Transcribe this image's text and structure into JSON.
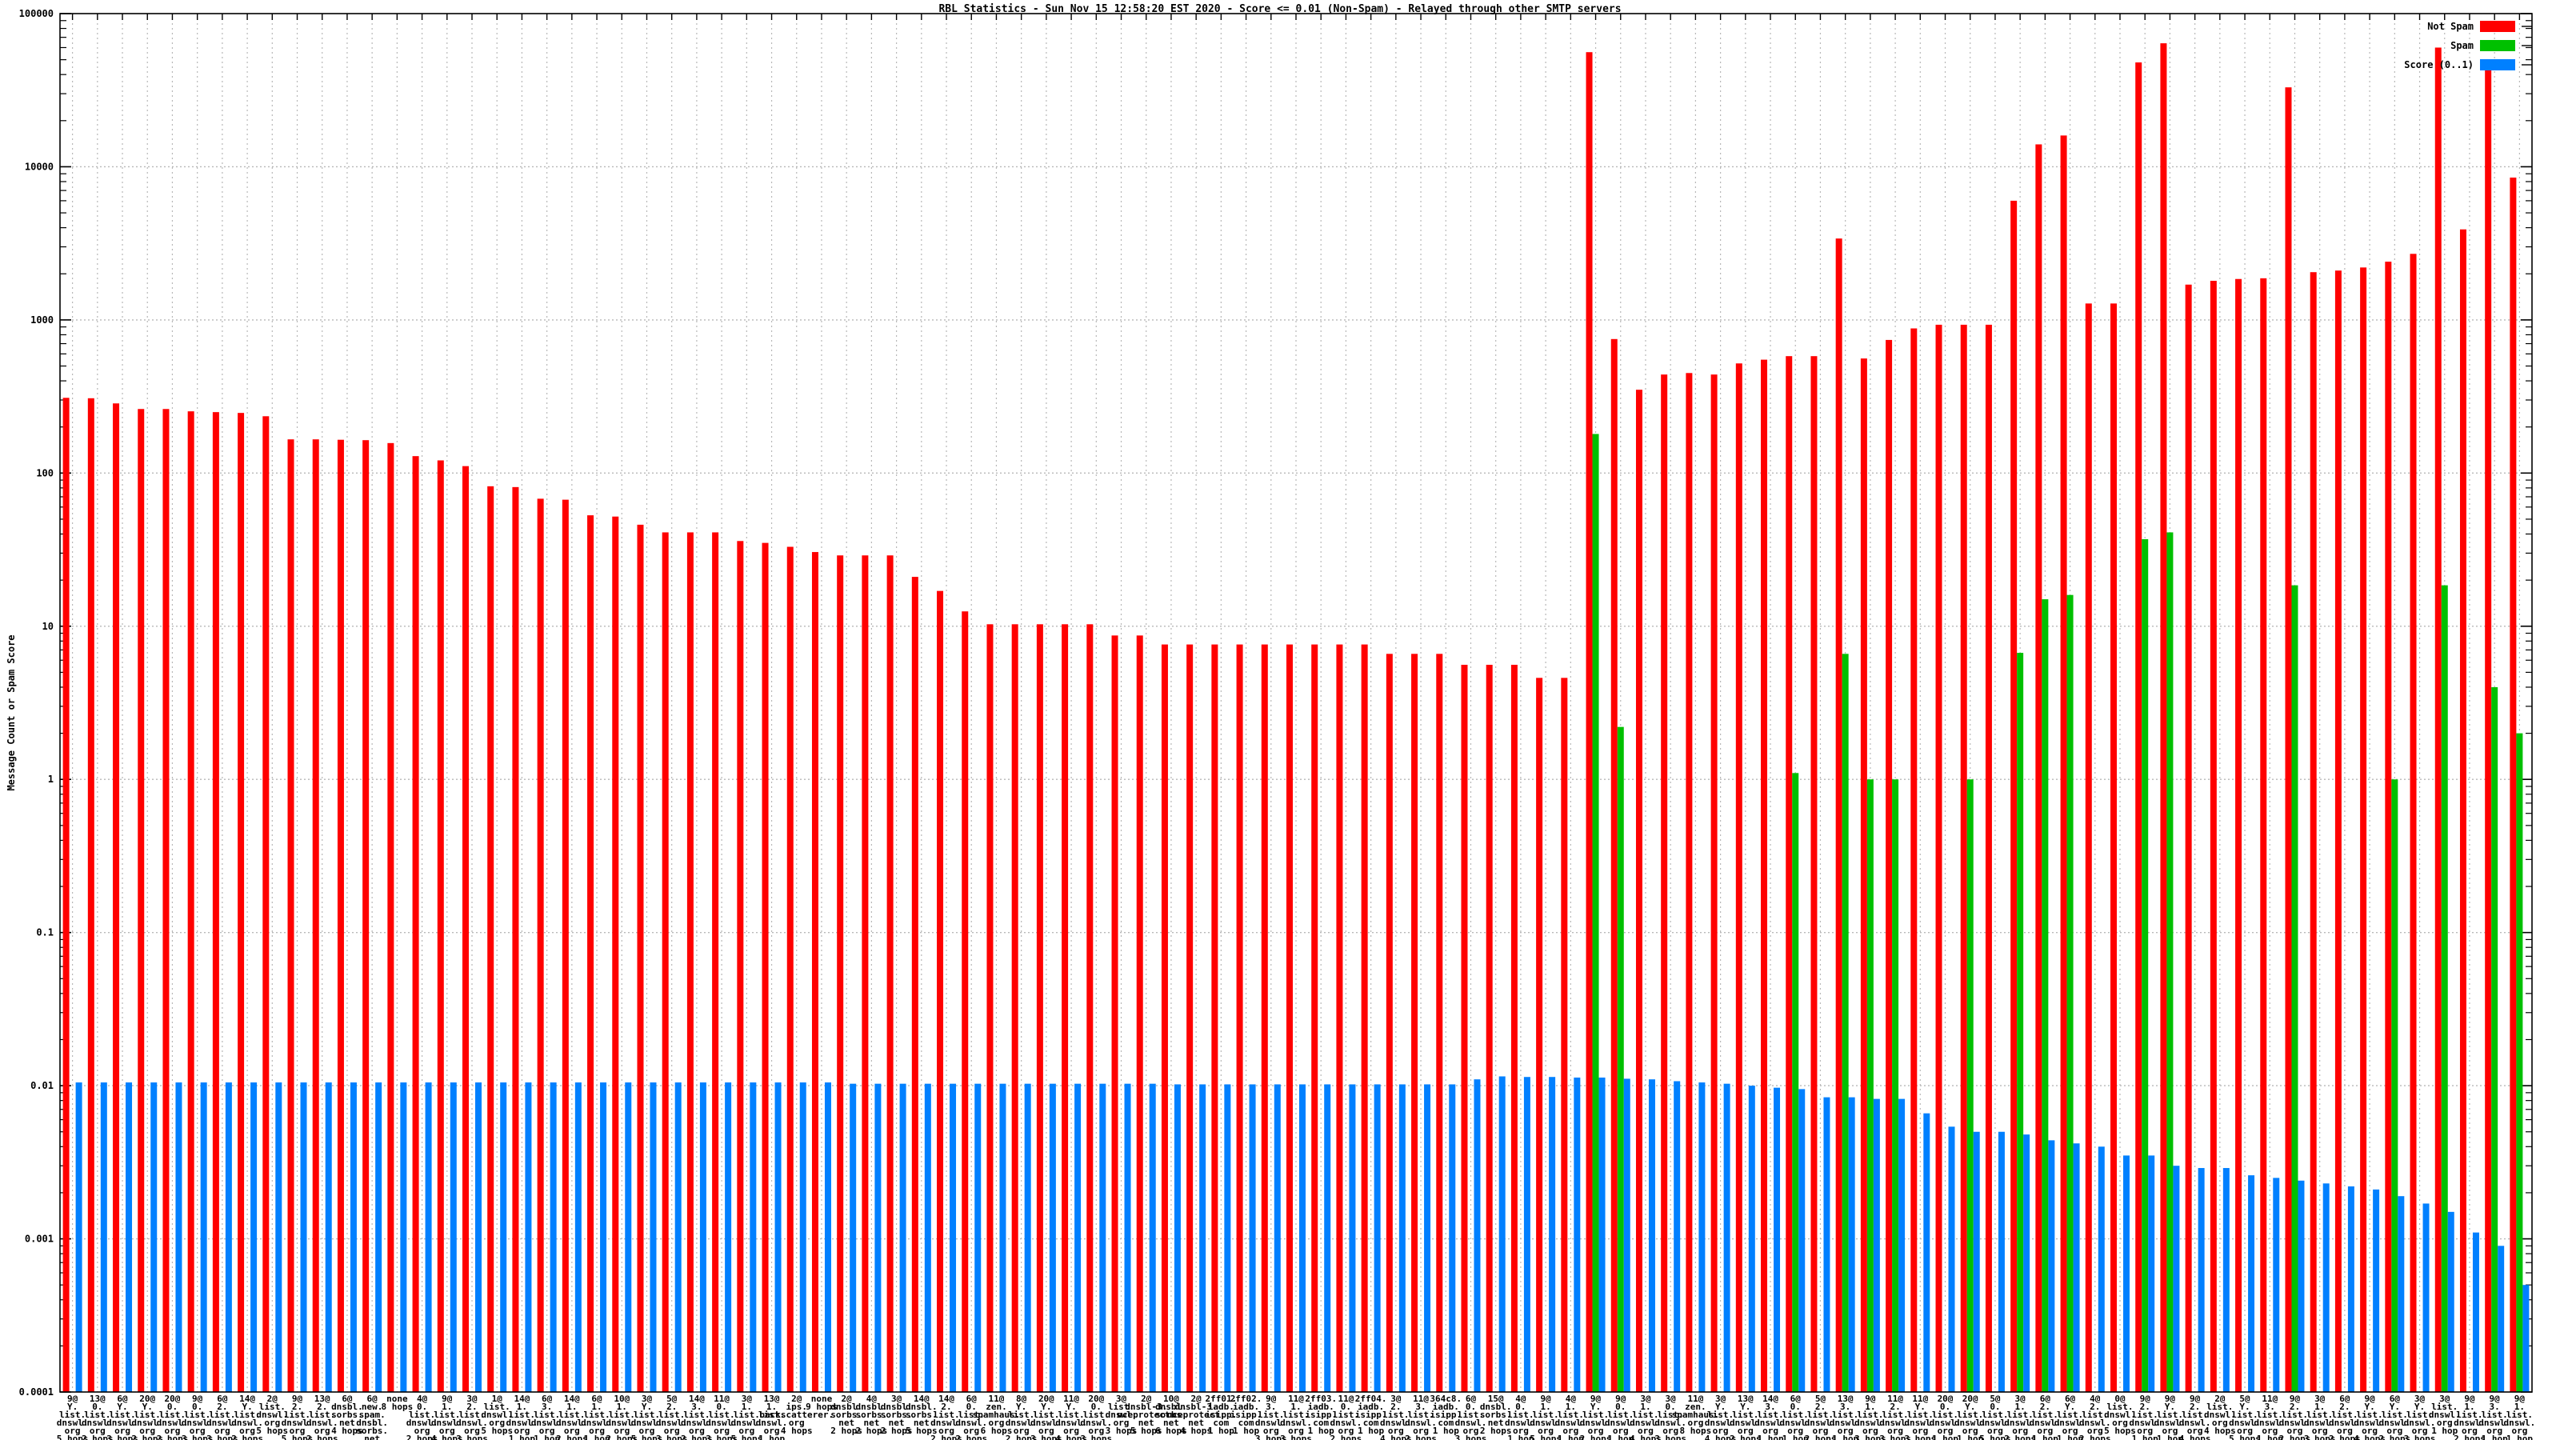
{
  "title": "RBL Statistics - Sun Nov 15 12:58:20 EST 2020 - Score <= 0.01 (Non-Spam) - Relayed through other SMTP servers",
  "ylabel": "Message Count or Spam Score",
  "legend": [
    {
      "label": "Not Spam",
      "color": "#ff0000"
    },
    {
      "label": "Spam",
      "color": "#00c000"
    },
    {
      "label": "Score (0..1)",
      "color": "#0080ff"
    }
  ],
  "colors": {
    "not_spam": "#ff0000",
    "spam": "#00c000",
    "score": "#0080ff",
    "grid": "#b8b8b8",
    "axis": "#000000"
  },
  "chart_data": {
    "type": "bar",
    "y_scale": "log",
    "ylim": [
      0.0001,
      100000
    ],
    "y_ticks": [
      "100000",
      "10000",
      "1000",
      "100",
      "10",
      "1",
      "0.1",
      "0.01",
      "0.001",
      "0.0001"
    ],
    "grid": true,
    "legend_position": "top-right",
    "series_names": [
      "Not Spam",
      "Spam",
      "Score (0..1)"
    ],
    "groups": [
      {
        "name": "9@Y.list.dnswl.org",
        "hops": "5 hops",
        "not_spam": 310,
        "spam": 0,
        "score": 0.0105
      },
      {
        "name": "13@0.list.dnswl.org",
        "hops": "2 hops",
        "not_spam": 308,
        "spam": 0,
        "score": 0.0105
      },
      {
        "name": "6@Y.list.dnswl.org",
        "hops": "3 hops",
        "not_spam": 285,
        "spam": 0,
        "score": 0.0105
      },
      {
        "name": "20@Y.list.dnswl.org",
        "hops": "2 hops",
        "not_spam": 262,
        "spam": 0,
        "score": 0.0105
      },
      {
        "name": "20@0.list.dnswl.org",
        "hops": "2 hops",
        "not_spam": 262,
        "spam": 0,
        "score": 0.0105
      },
      {
        "name": "9@0.list.dnswl.org",
        "hops": "3 hops",
        "not_spam": 253,
        "spam": 0,
        "score": 0.0105
      },
      {
        "name": "6@2.list.dnswl.org",
        "hops": "3 hops",
        "not_spam": 250,
        "spam": 0,
        "score": 0.0105
      },
      {
        "name": "14@Y.list.dnswl.org",
        "hops": "2 hops",
        "not_spam": 247,
        "spam": 0,
        "score": 0.0105
      },
      {
        "name": "2@list.dnswl.org",
        "hops": "5 hops",
        "not_spam": 235,
        "spam": 0,
        "score": 0.0105
      },
      {
        "name": "9@2.list.dnswl.org",
        "hops": "5 hops",
        "not_spam": 166,
        "spam": 0,
        "score": 0.0105
      },
      {
        "name": "13@2.list.dnswl.org",
        "hops": "2 hops",
        "not_spam": 166,
        "spam": 0,
        "score": 0.0105
      },
      {
        "name": "6@dnsbl.sorbs.net",
        "hops": "4 hops",
        "not_spam": 165,
        "spam": 0,
        "score": 0.0105
      },
      {
        "name": "6@new.spam.dnsbl.sorbs.net",
        "hops": "4 hops",
        "not_spam": 164,
        "spam": 0,
        "score": 0.0105
      },
      {
        "name": "none",
        "hops": "8 hops",
        "not_spam": 157,
        "spam": 0,
        "score": 0.0105
      },
      {
        "name": "4@0.list.dnswl.org",
        "hops": "2 hops",
        "not_spam": 129,
        "spam": 0,
        "score": 0.0105
      },
      {
        "name": "9@1.list.dnswl.org",
        "hops": "4 hops",
        "not_spam": 121,
        "spam": 0,
        "score": 0.0105
      },
      {
        "name": "3@2.list.dnswl.org",
        "hops": "3 hops",
        "not_spam": 111,
        "spam": 0,
        "score": 0.0105
      },
      {
        "name": "1@list.dnswl.org",
        "hops": "5 hops",
        "not_spam": 82,
        "spam": 0,
        "score": 0.0105
      },
      {
        "name": "14@1.list.dnswl.org",
        "hops": "1 hop",
        "not_spam": 81,
        "spam": 0,
        "score": 0.0105
      },
      {
        "name": "6@3.list.dnswl.org",
        "hops": "1 hop",
        "not_spam": 68,
        "spam": 0,
        "score": 0.0105
      },
      {
        "name": "14@1.list.dnswl.org",
        "hops": "2 hops",
        "not_spam": 67,
        "spam": 0,
        "score": 0.0105
      },
      {
        "name": "6@1.list.dnswl.org",
        "hops": "1 hop",
        "not_spam": 53,
        "spam": 0,
        "score": 0.0105
      },
      {
        "name": "10@1.list.dnswl.org",
        "hops": "2 hops",
        "not_spam": 52,
        "spam": 0,
        "score": 0.0105
      },
      {
        "name": "3@Y.list.dnswl.org",
        "hops": "5 hops",
        "not_spam": 46,
        "spam": 0,
        "score": 0.0105
      },
      {
        "name": "5@2.list.dnswl.org",
        "hops": "3 hops",
        "not_spam": 41,
        "spam": 0,
        "score": 0.0105
      },
      {
        "name": "14@3.list.dnswl.org",
        "hops": "2 hops",
        "not_spam": 41,
        "spam": 0,
        "score": 0.0105
      },
      {
        "name": "11@0.list.dnswl.org",
        "hops": "3 hops",
        "not_spam": 41,
        "spam": 0,
        "score": 0.0105
      },
      {
        "name": "3@1.list.dnswl.org",
        "hops": "5 hops",
        "not_spam": 36,
        "spam": 0,
        "score": 0.0105
      },
      {
        "name": "13@1.list.dnswl.org",
        "hops": "1 hop",
        "not_spam": 35,
        "spam": 0,
        "score": 0.0105
      },
      {
        "name": "2@ips.backscatterer.org",
        "hops": "4 hops",
        "not_spam": 33,
        "spam": 0,
        "score": 0.0105
      },
      {
        "name": "none",
        "hops": "9 hops",
        "not_spam": 30.5,
        "spam": 0,
        "score": 0.0105
      },
      {
        "name": "2@dnsbl.sorbs.net",
        "hops": "2 hops",
        "not_spam": 29,
        "spam": 0,
        "score": 0.0103
      },
      {
        "name": "4@dnsbl.sorbs.net",
        "hops": "2 hops",
        "not_spam": 29,
        "spam": 0,
        "score": 0.0103
      },
      {
        "name": "3@dnsbl.sorbs.net",
        "hops": "2 hops",
        "not_spam": 29,
        "spam": 0,
        "score": 0.0103
      },
      {
        "name": "14@dnsbl.sorbs.net",
        "hops": "5 hops",
        "not_spam": 21,
        "spam": 0,
        "score": 0.0103
      },
      {
        "name": "14@2.list.dnswl.org",
        "hops": "2 hops",
        "not_spam": 17,
        "spam": 0,
        "score": 0.0103
      },
      {
        "name": "6@0.list.dnswl.org",
        "hops": "2 hops",
        "not_spam": 12.5,
        "spam": 0,
        "score": 0.0103
      },
      {
        "name": "11@zen.spamhaus.org",
        "hops": "6 hops",
        "not_spam": 10.3,
        "spam": 0,
        "score": 0.0103
      },
      {
        "name": "8@Y.list.dnswl.org",
        "hops": "2 hops",
        "not_spam": 10.3,
        "spam": 0,
        "score": 0.0103
      },
      {
        "name": "20@Y.list.dnswl.org",
        "hops": "3 hops",
        "not_spam": 10.3,
        "spam": 0,
        "score": 0.0103
      },
      {
        "name": "11@Y.list.dnswl.org",
        "hops": "4 hops",
        "not_spam": 10.3,
        "spam": 0,
        "score": 0.0103
      },
      {
        "name": "20@0.list.dnswl.org",
        "hops": "3 hops",
        "not_spam": 10.3,
        "spam": 0,
        "score": 0.0103
      },
      {
        "name": "3@list.dnswl.org",
        "hops": "3 hops",
        "not_spam": 8.7,
        "spam": 0,
        "score": 0.0103
      },
      {
        "name": "2@dnsbl-3.uceprotect.net",
        "hops": "5 hops",
        "not_spam": 8.7,
        "spam": 0,
        "score": 0.0103
      },
      {
        "name": "10@dnsbl.sorbs.net",
        "hops": "6 hops",
        "not_spam": 7.6,
        "spam": 0,
        "score": 0.0102
      },
      {
        "name": "2@dnsbl-3.uceprotect.net",
        "hops": "4 hops",
        "not_spam": 7.6,
        "spam": 0,
        "score": 0.0102
      },
      {
        "name": "2ff01.iadb.isipp.com",
        "hops": "1 hop",
        "not_spam": 7.6,
        "spam": 0,
        "score": 0.0102
      },
      {
        "name": "2ff02.iadb.isipp.com",
        "hops": "1 hop",
        "not_spam": 7.6,
        "spam": 0,
        "score": 0.0102
      },
      {
        "name": "9@3.list.dnswl.org",
        "hops": "3 hops",
        "not_spam": 7.6,
        "spam": 0,
        "score": 0.0102
      },
      {
        "name": "11@1.list.dnswl.org",
        "hops": "3 hops",
        "not_spam": 7.6,
        "spam": 0,
        "score": 0.0102
      },
      {
        "name": "2ff03.iadb.isipp.com",
        "hops": "1 hop",
        "not_spam": 7.6,
        "spam": 0,
        "score": 0.0102
      },
      {
        "name": "11@0.list.dnswl.org",
        "hops": "2 hops",
        "not_spam": 7.6,
        "spam": 0,
        "score": 0.0102
      },
      {
        "name": "2ff04.iadb.isipp.com",
        "hops": "1 hop",
        "not_spam": 7.6,
        "spam": 0,
        "score": 0.0102
      },
      {
        "name": "3@2.list.dnswl.org",
        "hops": "4 hops",
        "not_spam": 6.6,
        "spam": 0,
        "score": 0.0102
      },
      {
        "name": "11@3.list.dnswl.org",
        "hops": "2 hops",
        "not_spam": 6.6,
        "spam": 0,
        "score": 0.0102
      },
      {
        "name": "364c8.iadb.isipp.com",
        "hops": "1 hop",
        "not_spam": 6.6,
        "spam": 0,
        "score": 0.0102
      },
      {
        "name": "6@0.list.dnswl.org",
        "hops": "3 hops",
        "not_spam": 5.6,
        "spam": 0,
        "score": 0.011
      },
      {
        "name": "15@dnsbl.sorbs.net",
        "hops": "2 hops",
        "not_spam": 5.6,
        "spam": 0,
        "score": 0.0115
      },
      {
        "name": "4@0.list.dnswl.org",
        "hops": "1 hop",
        "not_spam": 5.6,
        "spam": 0,
        "score": 0.0114
      },
      {
        "name": "9@1.list.dnswl.org",
        "hops": "5 hops",
        "not_spam": 4.6,
        "spam": 0,
        "score": 0.0114
      },
      {
        "name": "4@1.list.dnswl.org",
        "hops": "1 hop",
        "not_spam": 4.6,
        "spam": 0,
        "score": 0.0113
      },
      {
        "name": "9@Y.list.dnswl.org",
        "hops": "2 hops",
        "not_spam": 56000,
        "spam": 180,
        "score": 0.0113
      },
      {
        "name": "9@0.list.dnswl.org",
        "hops": "1 hop",
        "not_spam": 750,
        "spam": 2.2,
        "score": 0.0111
      },
      {
        "name": "3@1.list.dnswl.org",
        "hops": "4 hops",
        "not_spam": 350,
        "spam": 0,
        "score": 0.011
      },
      {
        "name": "3@0.list.dnswl.org",
        "hops": "3 hops",
        "not_spam": 440,
        "spam": 0,
        "score": 0.0107
      },
      {
        "name": "11@zen.spamhaus.org",
        "hops": "8 hops",
        "not_spam": 450,
        "spam": 0,
        "score": 0.0105
      },
      {
        "name": "3@Y.list.dnswl.org",
        "hops": "4 hops",
        "not_spam": 440,
        "spam": 0,
        "score": 0.0103
      },
      {
        "name": "13@Y.list.dnswl.org",
        "hops": "2 hops",
        "not_spam": 520,
        "spam": 0,
        "score": 0.01
      },
      {
        "name": "14@3.list.dnswl.org",
        "hops": "1 hop",
        "not_spam": 550,
        "spam": 0,
        "score": 0.0097
      },
      {
        "name": "6@0.list.dnswl.org",
        "hops": "1 hop",
        "not_spam": 580,
        "spam": 1.1,
        "score": 0.0095
      },
      {
        "name": "5@2.list.dnswl.org",
        "hops": "2 hops",
        "not_spam": 580,
        "spam": 0,
        "score": 0.0084
      },
      {
        "name": "13@3.list.dnswl.org",
        "hops": "1 hop",
        "not_spam": 3400,
        "spam": 6.6,
        "score": 0.0084
      },
      {
        "name": "9@1.list.dnswl.org",
        "hops": "3 hops",
        "not_spam": 560,
        "spam": 1,
        "score": 0.0082
      },
      {
        "name": "11@2.list.dnswl.org",
        "hops": "3 hops",
        "not_spam": 740,
        "spam": 1,
        "score": 0.0082
      },
      {
        "name": "11@Y.list.dnswl.org",
        "hops": "3 hops",
        "not_spam": 880,
        "spam": 0,
        "score": 0.0066
      },
      {
        "name": "20@0.list.dnswl.org",
        "hops": "1 hop",
        "not_spam": 930,
        "spam": 0,
        "score": 0.0054
      },
      {
        "name": "20@Y.list.dnswl.org",
        "hops": "1 hop",
        "not_spam": 930,
        "spam": 1,
        "score": 0.005
      },
      {
        "name": "5@0.list.dnswl.org",
        "hops": "5 hops",
        "not_spam": 930,
        "spam": 0,
        "score": 0.005
      },
      {
        "name": "3@1.list.dnswl.org",
        "hops": "2 hops",
        "not_spam": 6000,
        "spam": 6.7,
        "score": 0.0048
      },
      {
        "name": "6@2.list.dnswl.org",
        "hops": "1 hop",
        "not_spam": 14000,
        "spam": 15,
        "score": 0.0044
      },
      {
        "name": "6@Y.list.dnswl.org",
        "hops": "1 hop",
        "not_spam": 16000,
        "spam": 16,
        "score": 0.0042
      },
      {
        "name": "4@2.list.dnswl.org",
        "hops": "2 hops",
        "not_spam": 1280,
        "spam": 0,
        "score": 0.004
      },
      {
        "name": "0@list.dnswl.org",
        "hops": "5 hops",
        "not_spam": 1280,
        "spam": 0,
        "score": 0.0035
      },
      {
        "name": "9@2.list.dnswl.org",
        "hops": "1 hop",
        "not_spam": 48000,
        "spam": 37,
        "score": 0.0035
      },
      {
        "name": "9@Y.list.dnswl.org",
        "hops": "1 hop",
        "not_spam": 64000,
        "spam": 41,
        "score": 0.003
      },
      {
        "name": "9@2.list.dnswl.org",
        "hops": "4 hops",
        "not_spam": 1700,
        "spam": 0,
        "score": 0.0029
      },
      {
        "name": "2@list.dnswl.org",
        "hops": "4 hops",
        "not_spam": 1800,
        "spam": 0,
        "score": 0.0029
      },
      {
        "name": "5@Y.list.dnswl.org",
        "hops": "5 hops",
        "not_spam": 1850,
        "spam": 0,
        "score": 0.0026
      },
      {
        "name": "11@3.list.dnswl.org",
        "hops": "1 hop",
        "not_spam": 1870,
        "spam": 0,
        "score": 0.0025
      },
      {
        "name": "9@2.list.dnswl.org",
        "hops": "2 hops",
        "not_spam": 33000,
        "spam": 18.5,
        "score": 0.0024
      },
      {
        "name": "3@1.list.dnswl.org",
        "hops": "3 hops",
        "not_spam": 2050,
        "spam": 0,
        "score": 0.0023
      },
      {
        "name": "6@2.list.dnswl.org",
        "hops": "2 hops",
        "not_spam": 2100,
        "spam": 0,
        "score": 0.0022
      },
      {
        "name": "9@Y.list.dnswl.org",
        "hops": "4 hops",
        "not_spam": 2200,
        "spam": 0,
        "score": 0.0021
      },
      {
        "name": "6@Y.list.dnswl.org",
        "hops": "2 hops",
        "not_spam": 2400,
        "spam": 1,
        "score": 0.0019
      },
      {
        "name": "3@Y.list.dnswl.org",
        "hops": "3 hops",
        "not_spam": 2700,
        "spam": 0,
        "score": 0.0017
      },
      {
        "name": "3@list.dnswl.org",
        "hops": "1 hop",
        "not_spam": 60000,
        "spam": 18.5,
        "score": 0.0015
      },
      {
        "name": "9@1.list.dnswl.org",
        "hops": "2 hops",
        "not_spam": 3900,
        "spam": 0,
        "score": 0.0011
      },
      {
        "name": "9@3.list.dnswl.org",
        "hops": "1 hop",
        "not_spam": 45000,
        "spam": 4,
        "score": 0.0009
      },
      {
        "name": "9@1.list.dnswl.org",
        "hops": "1 hop",
        "not_spam": 8500,
        "spam": 2,
        "score": 0.0005
      }
    ]
  }
}
